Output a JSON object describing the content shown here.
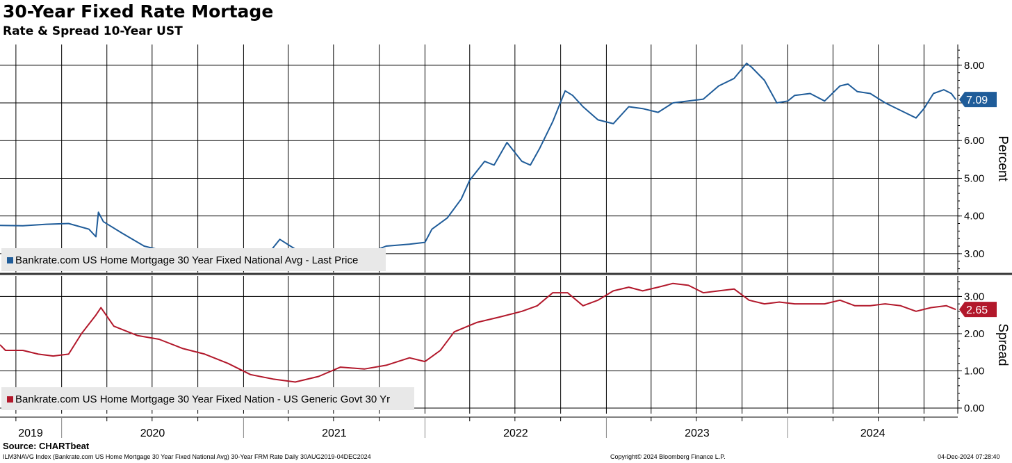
{
  "header": {
    "title": "30-Year Fixed Rate Mortage",
    "subtitle": "Rate & Spread 10-Year UST"
  },
  "chart_data": [
    {
      "type": "line",
      "panel": "top",
      "ylabel": "Percent",
      "ylim": [
        2.5,
        8.55
      ],
      "yticks": [
        "3.00",
        "4.00",
        "5.00",
        "6.00",
        "7.00",
        "8.00"
      ],
      "legend": "Bankrate.com US Home Mortgage 30 Year Fixed National Avg - Last Price",
      "legend_placement": "bottom-left",
      "last_value_label": "7.09",
      "color": "#1f5c99",
      "grid": true,
      "series": [
        {
          "x": [
            "2019-08-30",
            "2019-10-15",
            "2019-12-01",
            "2020-01-15",
            "2020-02-25",
            "2020-03-10",
            "2020-03-15",
            "2020-03-25",
            "2020-05-01",
            "2020-06-15",
            "2020-08-01",
            "2020-09-15",
            "2020-11-01",
            "2020-12-15",
            "2021-01-15",
            "2021-02-15",
            "2021-03-15",
            "2021-04-15",
            "2021-06-01",
            "2021-07-15",
            "2021-09-01",
            "2021-10-15",
            "2021-12-01",
            "2022-01-01",
            "2022-01-15",
            "2022-02-15",
            "2022-03-15",
            "2022-04-01",
            "2022-05-01",
            "2022-05-20",
            "2022-06-15",
            "2022-07-15",
            "2022-08-01",
            "2022-08-20",
            "2022-09-15",
            "2022-10-10",
            "2022-10-25",
            "2022-11-15",
            "2022-12-15",
            "2023-01-15",
            "2023-02-15",
            "2023-03-15",
            "2023-04-15",
            "2023-05-15",
            "2023-06-15",
            "2023-07-15",
            "2023-08-15",
            "2023-09-15",
            "2023-10-10",
            "2023-10-20",
            "2023-11-15",
            "2023-12-10",
            "2024-01-01",
            "2024-01-15",
            "2024-02-15",
            "2024-03-15",
            "2024-04-15",
            "2024-05-01",
            "2024-05-20",
            "2024-06-15",
            "2024-07-15",
            "2024-08-15",
            "2024-09-15",
            "2024-10-01",
            "2024-10-20",
            "2024-11-10",
            "2024-11-25",
            "2024-12-04"
          ],
          "y": [
            3.75,
            3.74,
            3.78,
            3.8,
            3.65,
            3.45,
            4.1,
            3.85,
            3.55,
            3.2,
            3.05,
            3.0,
            2.95,
            2.9,
            2.88,
            2.92,
            3.38,
            3.12,
            3.05,
            3.0,
            2.98,
            3.2,
            3.25,
            3.3,
            3.65,
            3.95,
            4.45,
            4.95,
            5.45,
            5.35,
            5.95,
            5.45,
            5.35,
            5.8,
            6.5,
            7.32,
            7.2,
            6.9,
            6.55,
            6.45,
            6.9,
            6.85,
            6.75,
            7.0,
            7.05,
            7.1,
            7.45,
            7.65,
            8.05,
            7.95,
            7.6,
            7.0,
            7.05,
            7.2,
            7.25,
            7.05,
            7.45,
            7.5,
            7.3,
            7.25,
            7.0,
            6.8,
            6.6,
            6.85,
            7.25,
            7.35,
            7.25,
            7.09
          ]
        }
      ]
    },
    {
      "type": "line",
      "panel": "bottom",
      "ylabel": "Spread",
      "ylim": [
        -0.15,
        3.55
      ],
      "yticks": [
        "0.00",
        "1.00",
        "2.00",
        "3.00"
      ],
      "legend": "Bankrate.com US Home Mortgage 30 Year Fixed Nation - US Generic Govt 30 Yr",
      "legend_placement": "bottom-left",
      "last_value_label": "2.65",
      "color": "#b2182b",
      "grid": true,
      "series": [
        {
          "x": [
            "2019-08-30",
            "2019-09-10",
            "2019-10-15",
            "2019-11-15",
            "2019-12-15",
            "2020-01-15",
            "2020-02-10",
            "2020-03-10",
            "2020-03-20",
            "2020-04-15",
            "2020-06-01",
            "2020-07-15",
            "2020-09-01",
            "2020-10-15",
            "2020-12-01",
            "2021-01-15",
            "2021-03-01",
            "2021-04-15",
            "2021-06-01",
            "2021-07-15",
            "2021-09-01",
            "2021-10-15",
            "2021-12-01",
            "2022-01-01",
            "2022-02-01",
            "2022-03-01",
            "2022-04-15",
            "2022-06-01",
            "2022-07-15",
            "2022-08-15",
            "2022-09-15",
            "2022-10-15",
            "2022-11-15",
            "2022-12-15",
            "2023-01-15",
            "2023-02-15",
            "2023-03-15",
            "2023-04-15",
            "2023-05-15",
            "2023-06-15",
            "2023-07-15",
            "2023-08-15",
            "2023-09-15",
            "2023-10-15",
            "2023-11-15",
            "2023-12-15",
            "2024-01-15",
            "2024-02-15",
            "2024-03-15",
            "2024-04-15",
            "2024-05-15",
            "2024-06-15",
            "2024-07-15",
            "2024-08-15",
            "2024-09-15",
            "2024-10-15",
            "2024-11-15",
            "2024-12-04"
          ],
          "y": [
            1.7,
            1.55,
            1.55,
            1.45,
            1.4,
            1.45,
            2.0,
            2.5,
            2.7,
            2.2,
            1.95,
            1.85,
            1.6,
            1.45,
            1.2,
            0.9,
            0.78,
            0.7,
            0.85,
            1.1,
            1.05,
            1.15,
            1.35,
            1.25,
            1.55,
            2.05,
            2.3,
            2.45,
            2.6,
            2.75,
            3.1,
            3.1,
            2.75,
            2.9,
            3.15,
            3.25,
            3.15,
            3.25,
            3.35,
            3.3,
            3.1,
            3.15,
            3.2,
            2.9,
            2.8,
            2.85,
            2.8,
            2.8,
            2.8,
            2.9,
            2.75,
            2.75,
            2.8,
            2.75,
            2.6,
            2.7,
            2.75,
            2.65
          ]
        }
      ]
    }
  ],
  "x_axis": {
    "year_labels": [
      "2019",
      "2020",
      "2021",
      "2022",
      "2023",
      "2024"
    ]
  },
  "footer": {
    "source": "Source: CHARTbeat",
    "left": "ILM3NAVG Index (Bankrate.com US Home Mortgage 30 Year Fixed National Avg) 30-Year FRM Rate  Daily 30AUG2019-04DEC2024",
    "center": "Copyright© 2024 Bloomberg Finance L.P.",
    "right": "04-Dec-2024 07:28:40"
  }
}
